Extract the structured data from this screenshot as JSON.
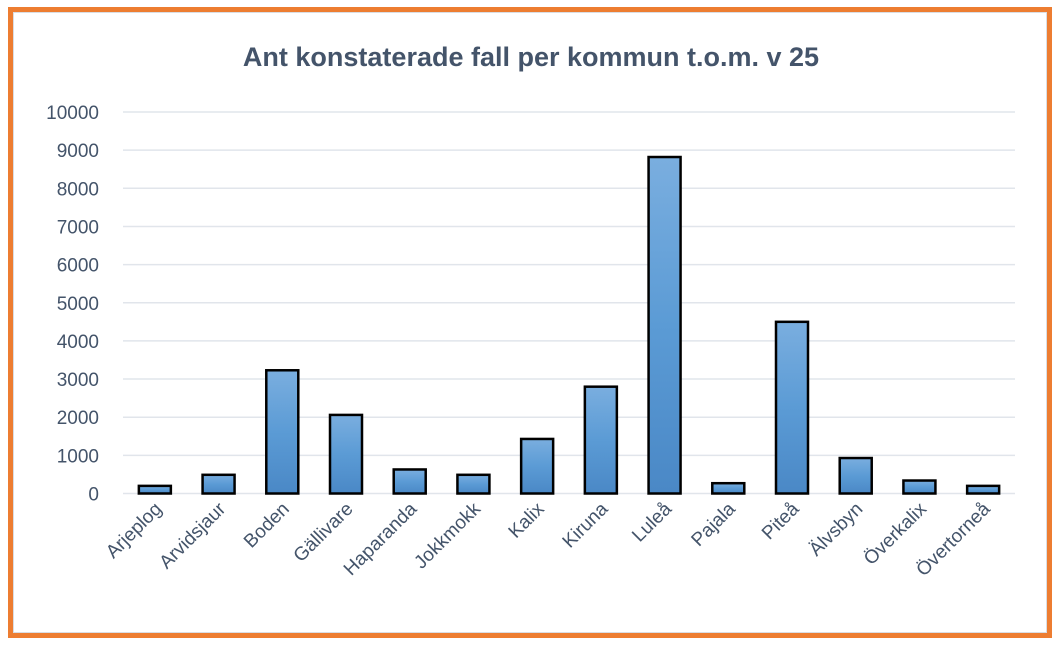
{
  "chart_data": {
    "type": "bar",
    "title": "Ant konstaterade fall per kommun t.o.m. v 25",
    "xlabel": "",
    "ylabel": "",
    "ylim": [
      0,
      10000
    ],
    "yticks": [
      "0",
      "1000",
      "2000",
      "3000",
      "4000",
      "5000",
      "6000",
      "7000",
      "8000",
      "9000",
      "10000"
    ],
    "grid": true,
    "categories": [
      "Arjeplog",
      "Arvidsjaur",
      "Boden",
      "Gällivare",
      "Haparanda",
      "Jokkmokk",
      "Kalix",
      "Kiruna",
      "Luleå",
      "Pajala",
      "Piteå",
      "Älvsbyn",
      "Överkalix",
      "Övertorneå"
    ],
    "values": [
      200,
      490,
      3230,
      2060,
      630,
      490,
      1430,
      2800,
      8820,
      270,
      4500,
      930,
      340,
      200
    ],
    "colors": {
      "bar": "#5B9BD5",
      "bar_light": "#7AAEDF",
      "bar_dark": "#4A88C6",
      "outline": "#000000",
      "grid": "#E1E5EB",
      "frame": "#ED7D31",
      "text": "#44546A"
    }
  }
}
